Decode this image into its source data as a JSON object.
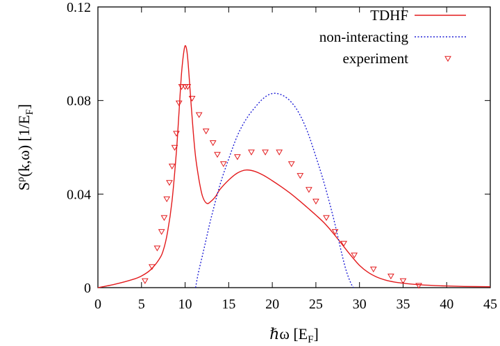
{
  "chart_data": {
    "type": "line",
    "title": "",
    "xlabel": "ℏω [E_F]",
    "ylabel": "S^ρ(k,ω) [1/E_F]",
    "xlim": [
      0,
      45
    ],
    "ylim": [
      0,
      0.12
    ],
    "xticks": [
      "0",
      "5",
      "10",
      "15",
      "20",
      "25",
      "30",
      "35",
      "40",
      "45"
    ],
    "xtick_values": [
      0,
      5,
      10,
      15,
      20,
      25,
      30,
      35,
      40,
      45
    ],
    "yticks": [
      "0",
      "0.04",
      "0.08",
      "0.12"
    ],
    "ytick_values": [
      0,
      0.04,
      0.08,
      0.12
    ],
    "grid": false,
    "legend_position": "top-right",
    "series": [
      {
        "name": "TDHF",
        "style": "solid",
        "color": "#e31a1c",
        "x": [
          0,
          2,
          4,
          5,
          6,
          7,
          7.5,
          8,
          8.5,
          9,
          9.3,
          9.6,
          9.9,
          10.1,
          10.3,
          10.6,
          10.9,
          11.2,
          11.6,
          12,
          12.5,
          13,
          13.5,
          14,
          15,
          16,
          17,
          18,
          19,
          20,
          21,
          22,
          23,
          24,
          25,
          26,
          27,
          28,
          29,
          30,
          31,
          32,
          33,
          34,
          35,
          36,
          38,
          40,
          42,
          45
        ],
        "y": [
          0,
          0.0015,
          0.0035,
          0.005,
          0.0075,
          0.012,
          0.016,
          0.024,
          0.037,
          0.058,
          0.075,
          0.092,
          0.102,
          0.103,
          0.098,
          0.083,
          0.068,
          0.056,
          0.046,
          0.039,
          0.036,
          0.037,
          0.039,
          0.042,
          0.046,
          0.049,
          0.0503,
          0.0497,
          0.048,
          0.0457,
          0.0432,
          0.0405,
          0.0375,
          0.0343,
          0.031,
          0.0275,
          0.0232,
          0.0185,
          0.0138,
          0.0095,
          0.0065,
          0.0045,
          0.0032,
          0.0024,
          0.0019,
          0.0015,
          0.001,
          0.0007,
          0.0005,
          0.0004
        ]
      },
      {
        "name": "non-interacting",
        "style": "dotted",
        "color": "#1f1fd6",
        "x": [
          11.2,
          11.5,
          12,
          12.5,
          13,
          14,
          15,
          16,
          17,
          18,
          19,
          20,
          21,
          22,
          23,
          24,
          25,
          26,
          27,
          27.5,
          28,
          28.5,
          29,
          29.3
        ],
        "y": [
          0,
          0.006,
          0.014,
          0.022,
          0.03,
          0.044,
          0.055,
          0.065,
          0.072,
          0.077,
          0.081,
          0.083,
          0.0825,
          0.08,
          0.075,
          0.067,
          0.056,
          0.044,
          0.03,
          0.022,
          0.014,
          0.007,
          0.002,
          0
        ]
      },
      {
        "name": "experiment",
        "style": "markers",
        "marker": "triangle-down",
        "color": "#e31a1c",
        "x": [
          5.4,
          6.2,
          6.8,
          7.3,
          7.6,
          7.9,
          8.2,
          8.5,
          8.8,
          9.0,
          9.3,
          9.6,
          10.0,
          10.3,
          10.8,
          11.6,
          12.4,
          13.2,
          13.7,
          14.4,
          16.0,
          17.6,
          19.2,
          20.8,
          22.2,
          23.2,
          24.2,
          25.0,
          26.2,
          27.2,
          28.2,
          29.4,
          31.6,
          33.6,
          35.0,
          36.8
        ],
        "y": [
          0.003,
          0.009,
          0.017,
          0.024,
          0.03,
          0.038,
          0.045,
          0.052,
          0.06,
          0.066,
          0.079,
          0.086,
          0.086,
          0.086,
          0.081,
          0.074,
          0.067,
          0.062,
          0.057,
          0.053,
          0.056,
          0.058,
          0.058,
          0.058,
          0.053,
          0.048,
          0.042,
          0.037,
          0.03,
          0.024,
          0.019,
          0.014,
          0.008,
          0.005,
          0.003,
          0.001
        ]
      }
    ]
  }
}
